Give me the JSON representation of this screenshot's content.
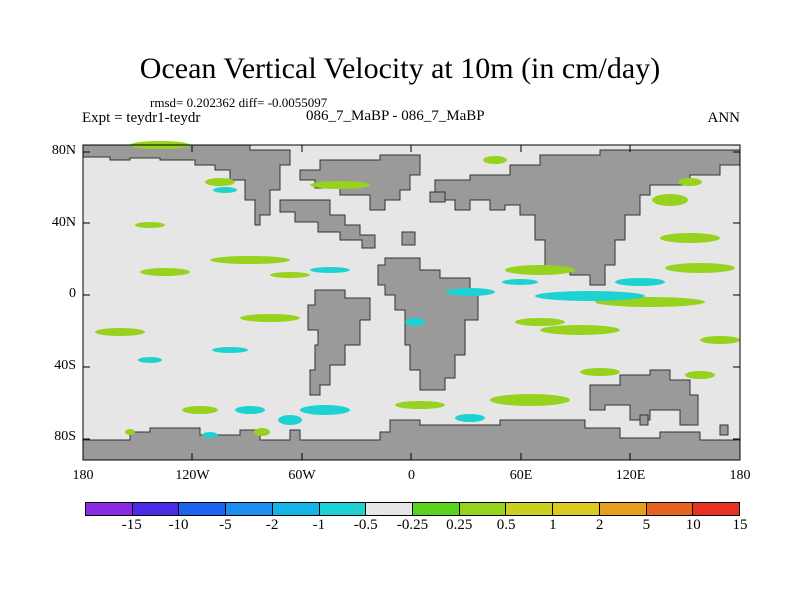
{
  "title": "Ocean Vertical Velocity at 10m (in cm/day)",
  "stats": "rmsd= 0.202362 diff= -0.0055097",
  "expt": "Expt = teydr1-teydr",
  "case": "086_7_MaBP - 086_7_MaBP",
  "season": "ANN",
  "y_axis": {
    "ticks": [
      {
        "value": 80,
        "label": "80N"
      },
      {
        "value": 40,
        "label": "40N"
      },
      {
        "value": 0,
        "label": "0"
      },
      {
        "value": -40,
        "label": "40S"
      },
      {
        "value": -80,
        "label": "80S"
      }
    ]
  },
  "x_axis": {
    "ticks": [
      {
        "value": -180,
        "label": "180"
      },
      {
        "value": -120,
        "label": "120W"
      },
      {
        "value": -60,
        "label": "60W"
      },
      {
        "value": 0,
        "label": "0"
      },
      {
        "value": 60,
        "label": "60E"
      },
      {
        "value": 120,
        "label": "120E"
      },
      {
        "value": 180,
        "label": "180"
      }
    ]
  },
  "colorbar": {
    "colors": [
      "#8a2be2",
      "#4b2be8",
      "#1e64f0",
      "#1e8cf0",
      "#14b4e6",
      "#1ed2d2",
      "#e6e6e6",
      "#5ad21e",
      "#96d21e",
      "#c8d21e",
      "#dcc81e",
      "#e6a01e",
      "#e6641e",
      "#e6321e"
    ],
    "labels": [
      "-15",
      "-10",
      "-5",
      "-2",
      "-1",
      "-0.5",
      "-0.25",
      "0.25",
      "0.5",
      "1",
      "2",
      "5",
      "10",
      "15"
    ]
  },
  "colors": {
    "land": "#9a9a9a",
    "ocean": "#e6e6e6",
    "positive": "#96d21e",
    "negative": "#1ed2d2"
  }
}
